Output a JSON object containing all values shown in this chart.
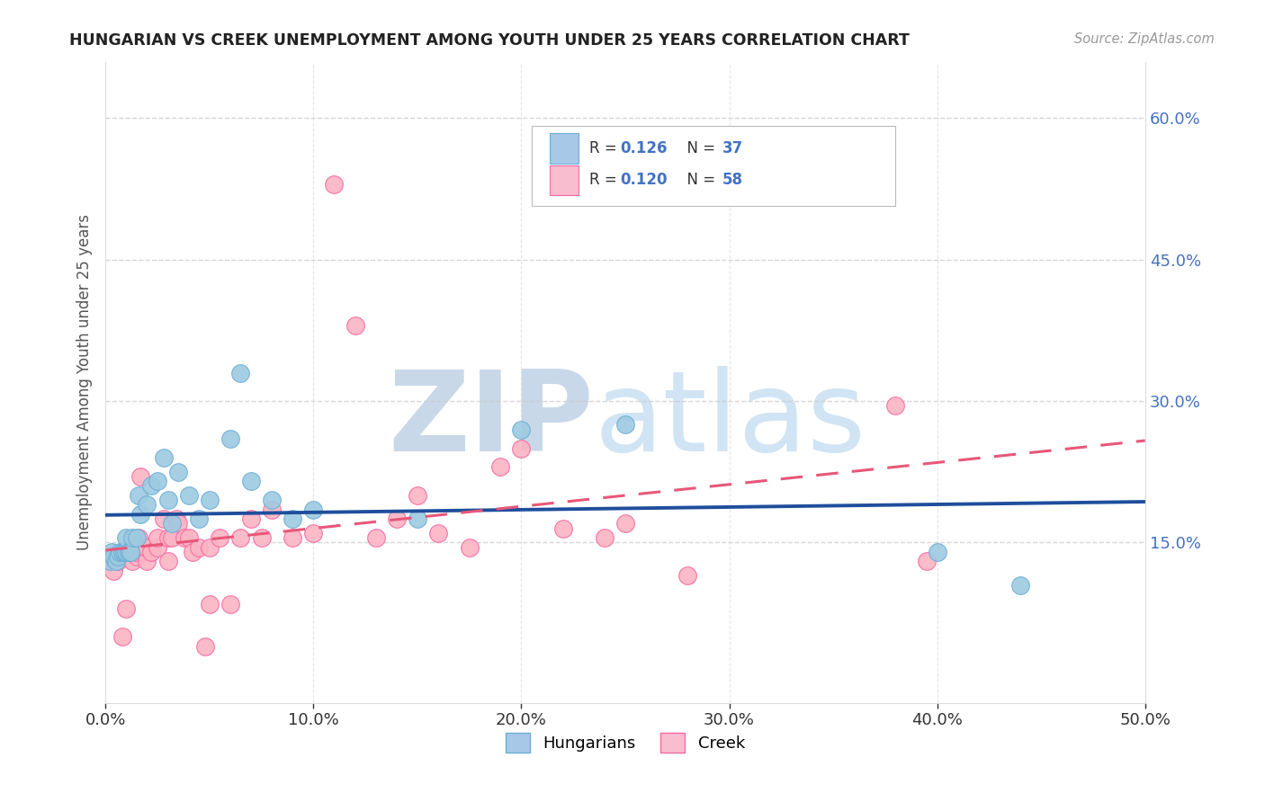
{
  "title": "HUNGARIAN VS CREEK UNEMPLOYMENT AMONG YOUTH UNDER 25 YEARS CORRELATION CHART",
  "source": "Source: ZipAtlas.com",
  "ylabel": "Unemployment Among Youth under 25 years",
  "xlim": [
    0.0,
    0.5
  ],
  "ylim": [
    -0.02,
    0.66
  ],
  "xticks": [
    0.0,
    0.1,
    0.2,
    0.3,
    0.4,
    0.5
  ],
  "yticks": [
    0.15,
    0.3,
    0.45,
    0.6
  ],
  "hungarian_x": [
    0.002,
    0.003,
    0.004,
    0.005,
    0.006,
    0.007,
    0.008,
    0.009,
    0.01,
    0.01,
    0.011,
    0.012,
    0.013,
    0.015,
    0.016,
    0.017,
    0.02,
    0.022,
    0.025,
    0.028,
    0.03,
    0.032,
    0.035,
    0.04,
    0.045,
    0.05,
    0.06,
    0.065,
    0.07,
    0.08,
    0.09,
    0.1,
    0.15,
    0.2,
    0.25,
    0.4,
    0.44
  ],
  "hungarian_y": [
    0.13,
    0.14,
    0.135,
    0.13,
    0.135,
    0.14,
    0.14,
    0.14,
    0.14,
    0.155,
    0.14,
    0.14,
    0.155,
    0.155,
    0.2,
    0.18,
    0.19,
    0.21,
    0.215,
    0.24,
    0.195,
    0.17,
    0.225,
    0.2,
    0.175,
    0.195,
    0.26,
    0.33,
    0.215,
    0.195,
    0.175,
    0.185,
    0.175,
    0.27,
    0.275,
    0.14,
    0.105
  ],
  "creek_x": [
    0.002,
    0.003,
    0.004,
    0.005,
    0.006,
    0.007,
    0.008,
    0.009,
    0.01,
    0.01,
    0.012,
    0.013,
    0.015,
    0.015,
    0.016,
    0.017,
    0.018,
    0.02,
    0.02,
    0.022,
    0.025,
    0.025,
    0.028,
    0.03,
    0.03,
    0.032,
    0.034,
    0.035,
    0.038,
    0.04,
    0.042,
    0.045,
    0.05,
    0.05,
    0.055,
    0.06,
    0.065,
    0.07,
    0.075,
    0.08,
    0.09,
    0.1,
    0.11,
    0.12,
    0.13,
    0.14,
    0.15,
    0.16,
    0.175,
    0.19,
    0.2,
    0.22,
    0.24,
    0.25,
    0.28,
    0.38,
    0.395,
    0.048
  ],
  "creek_y": [
    0.13,
    0.135,
    0.12,
    0.135,
    0.13,
    0.135,
    0.05,
    0.14,
    0.14,
    0.08,
    0.14,
    0.13,
    0.135,
    0.14,
    0.155,
    0.22,
    0.14,
    0.13,
    0.145,
    0.14,
    0.145,
    0.155,
    0.175,
    0.155,
    0.13,
    0.155,
    0.175,
    0.17,
    0.155,
    0.155,
    0.14,
    0.145,
    0.145,
    0.085,
    0.155,
    0.085,
    0.155,
    0.175,
    0.155,
    0.185,
    0.155,
    0.16,
    0.53,
    0.38,
    0.155,
    0.175,
    0.2,
    0.16,
    0.145,
    0.23,
    0.25,
    0.165,
    0.155,
    0.17,
    0.115,
    0.295,
    0.13,
    0.04
  ],
  "hungarian_color": "#9ecae1",
  "creek_color": "#fbb4c3",
  "hungarian_edge_color": "#6baed6",
  "creek_edge_color": "#f768a1",
  "hungarian_line_color": "#1f4e9c",
  "creek_line_color": "#e8577a",
  "watermark_zip": "ZIP",
  "watermark_atlas": "atlas",
  "watermark_color": "#d8e8f5",
  "background_color": "#ffffff",
  "grid_color": "#cccccc",
  "right_tick_color": "#4472c4",
  "legend_hun_color": "#a8c8e8",
  "legend_cre_color": "#f9bdd0"
}
